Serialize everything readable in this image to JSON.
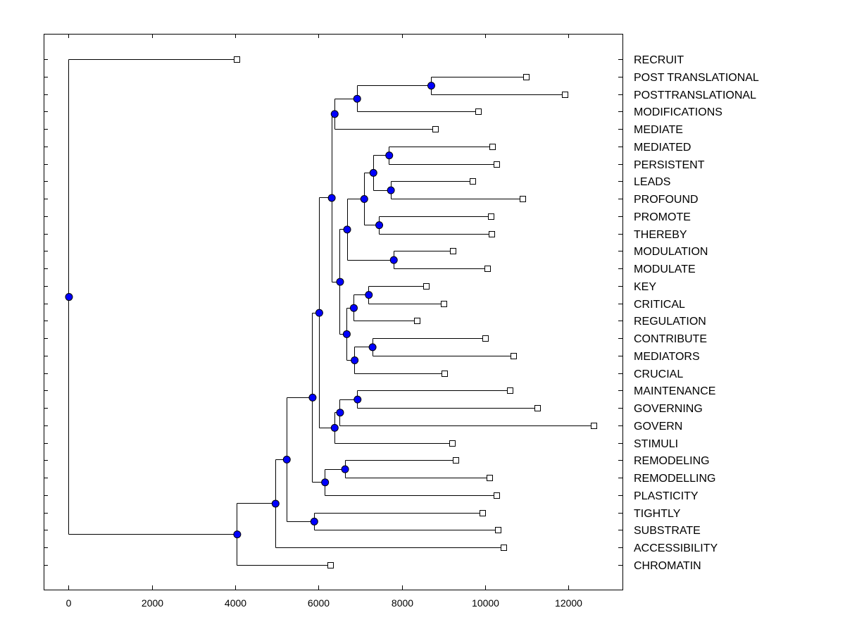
{
  "chart_data": {
    "type": "dendrogram",
    "orientation": "horizontal",
    "title": "",
    "xlabel": "",
    "ylabel": "",
    "xlim": [
      -600,
      13300
    ],
    "xticks": [
      0,
      2000,
      4000,
      6000,
      8000,
      10000,
      12000
    ],
    "xtick_labels": [
      "0",
      "2000",
      "4000",
      "6000",
      "8000",
      "10000",
      "12000"
    ],
    "grid": false,
    "colors": {
      "node": "#0000ff",
      "leaf": "#ffffff",
      "line": "#000000"
    },
    "leaves": [
      {
        "label": "RECRUIT",
        "x": 4040
      },
      {
        "label": "POST TRANSLATIONAL",
        "x": 10980
      },
      {
        "label": "POSTTRANSLATIONAL",
        "x": 11920
      },
      {
        "label": "MODIFICATIONS",
        "x": 9830
      },
      {
        "label": "MEDIATE",
        "x": 8800
      },
      {
        "label": "MEDIATED",
        "x": 10170
      },
      {
        "label": "PERSISTENT",
        "x": 10280
      },
      {
        "label": "LEADS",
        "x": 9700
      },
      {
        "label": "PROFOUND",
        "x": 10900
      },
      {
        "label": "PROMOTE",
        "x": 10130
      },
      {
        "label": "THEREBY",
        "x": 10150
      },
      {
        "label": "MODULATION",
        "x": 9230
      },
      {
        "label": "MODULATE",
        "x": 10060
      },
      {
        "label": "KEY",
        "x": 8590
      },
      {
        "label": "CRITICAL",
        "x": 9010
      },
      {
        "label": "REGULATION",
        "x": 8360
      },
      {
        "label": "CONTRIBUTE",
        "x": 10000
      },
      {
        "label": "MEDIATORS",
        "x": 10680
      },
      {
        "label": "CRUCIAL",
        "x": 9030
      },
      {
        "label": "MAINTENANCE",
        "x": 10590
      },
      {
        "label": "GOVERNING",
        "x": 11260
      },
      {
        "label": "GOVERN",
        "x": 12600
      },
      {
        "label": "STIMULI",
        "x": 9200
      },
      {
        "label": "REMODELING",
        "x": 9300
      },
      {
        "label": "REMODELLING",
        "x": 10110
      },
      {
        "label": "PLASTICITY",
        "x": 10280
      },
      {
        "label": "TIGHTLY",
        "x": 9940
      },
      {
        "label": "SUBSTRATE",
        "x": 10310
      },
      {
        "label": "ACCESSIBILITY",
        "x": 10440
      },
      {
        "label": "CHROMATIN",
        "x": 6280
      }
    ],
    "merges": [
      {
        "id": "n_pt",
        "x": 8700,
        "children": [
          "L1",
          "L2"
        ]
      },
      {
        "id": "n_ptm",
        "x": 6920,
        "children": [
          "n_pt",
          "L3"
        ]
      },
      {
        "id": "n_med",
        "x": 6380,
        "children": [
          "n_ptm",
          "L4"
        ]
      },
      {
        "id": "n_mp",
        "x": 7690,
        "children": [
          "L5",
          "L6"
        ]
      },
      {
        "id": "n_lp",
        "x": 7730,
        "children": [
          "L7",
          "L8"
        ]
      },
      {
        "id": "n_mplp",
        "x": 7310,
        "children": [
          "n_mp",
          "n_lp"
        ]
      },
      {
        "id": "n_pro",
        "x": 7450,
        "children": [
          "L9",
          "L10"
        ]
      },
      {
        "id": "n_mid",
        "x": 7090,
        "children": [
          "n_mplp",
          "n_pro"
        ]
      },
      {
        "id": "n_modu",
        "x": 7800,
        "children": [
          "L11",
          "L12"
        ]
      },
      {
        "id": "n_midmod",
        "x": 6680,
        "children": [
          "n_mid",
          "n_modu"
        ]
      },
      {
        "id": "n_kc",
        "x": 7200,
        "children": [
          "L13",
          "L14"
        ]
      },
      {
        "id": "n_kcr",
        "x": 6840,
        "children": [
          "n_kc",
          "L15"
        ]
      },
      {
        "id": "n_cm",
        "x": 7290,
        "children": [
          "L16",
          "L17"
        ]
      },
      {
        "id": "n_cmc",
        "x": 6860,
        "children": [
          "n_cm",
          "L18"
        ]
      },
      {
        "id": "n_kgroup",
        "x": 6670,
        "children": [
          "n_kcr",
          "n_cmc"
        ]
      },
      {
        "id": "n_kgroup2",
        "x": 6510,
        "children": [
          "n_midmod",
          "n_kgroup"
        ]
      },
      {
        "id": "n_upper",
        "x": 6310,
        "children": [
          "n_med",
          "n_kgroup2"
        ]
      },
      {
        "id": "n_mg",
        "x": 6930,
        "children": [
          "L19",
          "L20"
        ]
      },
      {
        "id": "n_mgg",
        "x": 6510,
        "children": [
          "n_mg",
          "L21"
        ]
      },
      {
        "id": "n_gov",
        "x": 6380,
        "children": [
          "n_mgg",
          "L22"
        ]
      },
      {
        "id": "n_u2",
        "x": 6010,
        "children": [
          "n_upper",
          "n_gov"
        ]
      },
      {
        "id": "n_rr",
        "x": 6630,
        "children": [
          "L23",
          "L24"
        ]
      },
      {
        "id": "n_rrp",
        "x": 6150,
        "children": [
          "n_rr",
          "L25"
        ]
      },
      {
        "id": "n_u3",
        "x": 5850,
        "children": [
          "n_u2",
          "n_rrp"
        ]
      },
      {
        "id": "n_ts",
        "x": 5890,
        "children": [
          "L26",
          "L27"
        ]
      },
      {
        "id": "n_u4",
        "x": 5230,
        "children": [
          "n_u3",
          "n_ts"
        ]
      },
      {
        "id": "n_u5",
        "x": 4960,
        "children": [
          "n_u4",
          "L28"
        ]
      },
      {
        "id": "n_u6",
        "x": 4040,
        "children": [
          "n_u5",
          "L29"
        ]
      },
      {
        "id": "n_root",
        "x": 0,
        "children": [
          "L0",
          "n_u6"
        ]
      }
    ]
  }
}
